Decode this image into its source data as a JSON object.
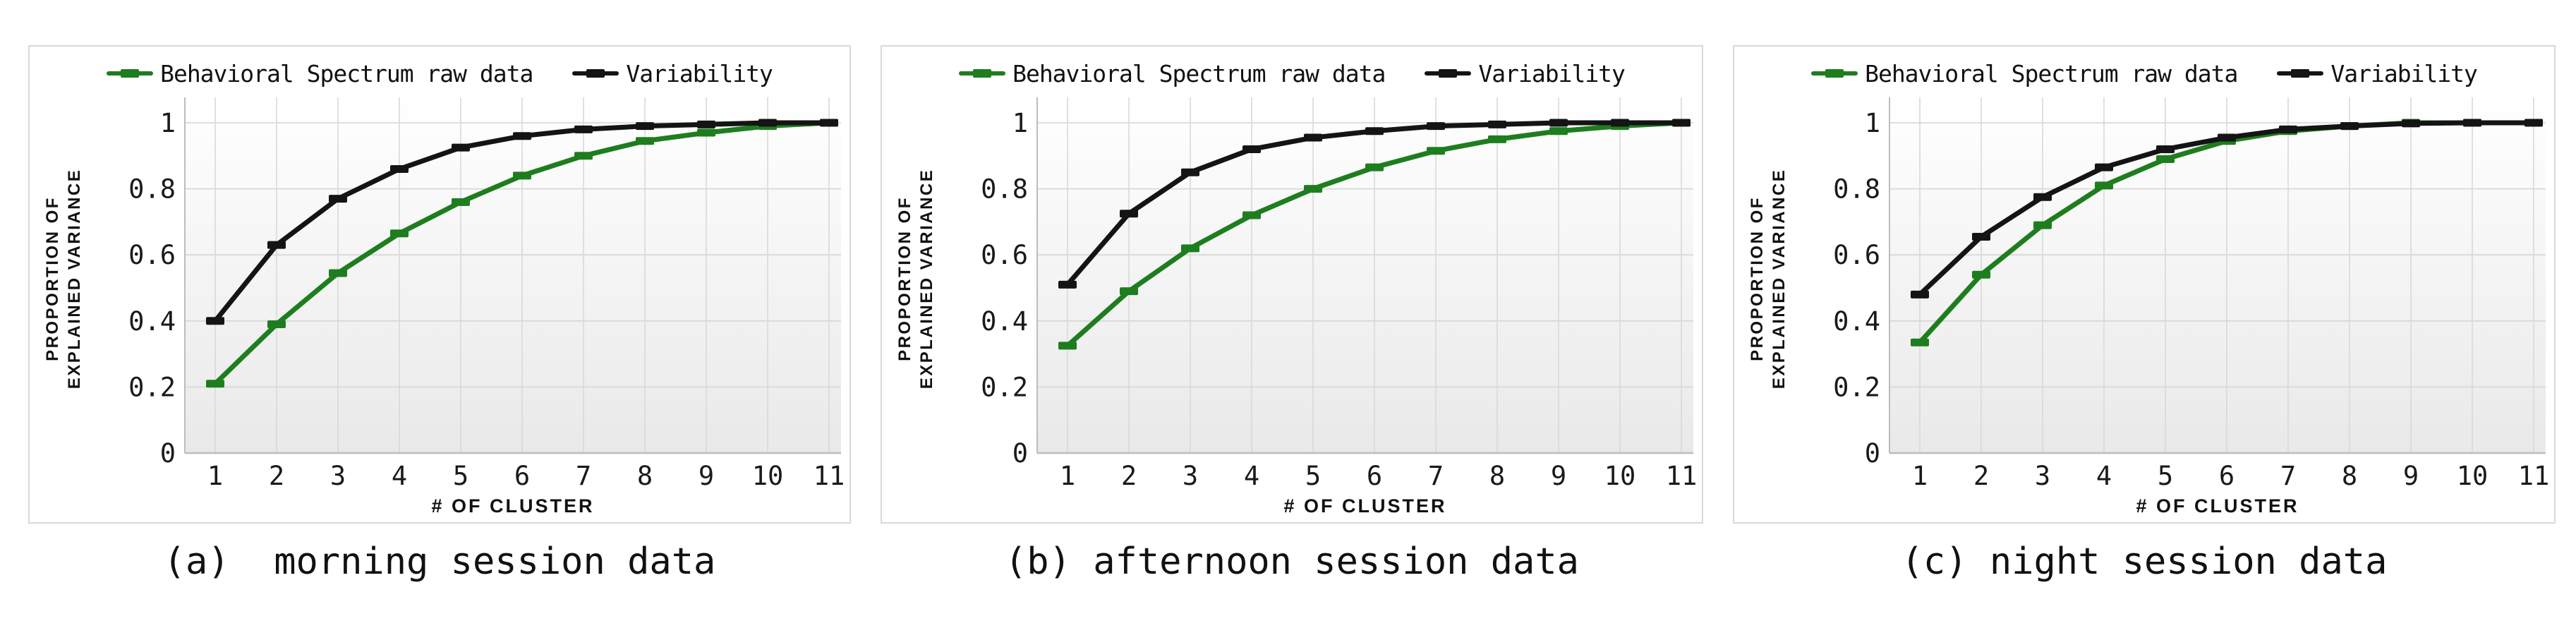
{
  "axis": {
    "x_title": "# OF CLUSTER",
    "y_line1": "PROPORTION OF",
    "y_line2": "EXPLAINED VARIANCE",
    "y_tick_labels": [
      "0",
      "0.2",
      "0.4",
      "0.6",
      "0.8",
      "1"
    ],
    "x_tick_labels": [
      "1",
      "2",
      "3",
      "4",
      "5",
      "6",
      "7",
      "8",
      "9",
      "10",
      "11"
    ]
  },
  "colors": {
    "behavioral": "#1e7d1e",
    "variability": "#141414",
    "grid": "#d9d9d9",
    "axis_line": "#bdbdbd",
    "plot_bg_top": "#ffffff",
    "plot_bg_bottom": "#e9e9e9"
  },
  "chart_data": [
    {
      "type": "line",
      "caption": "(a)  morning session data",
      "xlabel": "# OF CLUSTER",
      "ylabel": "PROPORTION OF EXPLAINED VARIANCE",
      "x": [
        1,
        2,
        3,
        4,
        5,
        6,
        7,
        8,
        9,
        10,
        11
      ],
      "y_ticks": [
        0,
        0.2,
        0.4,
        0.6,
        0.8,
        1
      ],
      "ylim": [
        0,
        1.08
      ],
      "grid": true,
      "legend_position": "top",
      "series": [
        {
          "name": "Behavioral Spectrum raw data",
          "color": "#1e7d1e",
          "values": [
            0.21,
            0.39,
            0.545,
            0.665,
            0.76,
            0.84,
            0.9,
            0.945,
            0.97,
            0.99,
            1.0
          ]
        },
        {
          "name": "Variability",
          "color": "#141414",
          "values": [
            0.4,
            0.63,
            0.77,
            0.86,
            0.925,
            0.96,
            0.98,
            0.99,
            0.995,
            1.0,
            1.0
          ]
        }
      ]
    },
    {
      "type": "line",
      "caption": "(b) afternoon session data",
      "xlabel": "# OF CLUSTER",
      "ylabel": "PROPORTION OF EXPLAINED VARIANCE",
      "x": [
        1,
        2,
        3,
        4,
        5,
        6,
        7,
        8,
        9,
        10,
        11
      ],
      "y_ticks": [
        0,
        0.2,
        0.4,
        0.6,
        0.8,
        1
      ],
      "ylim": [
        0,
        1.08
      ],
      "grid": true,
      "legend_position": "top",
      "series": [
        {
          "name": "Behavioral Spectrum raw data",
          "color": "#1e7d1e",
          "values": [
            0.325,
            0.49,
            0.62,
            0.72,
            0.8,
            0.865,
            0.915,
            0.95,
            0.975,
            0.99,
            1.0
          ]
        },
        {
          "name": "Variability",
          "color": "#141414",
          "values": [
            0.51,
            0.725,
            0.85,
            0.92,
            0.955,
            0.975,
            0.99,
            0.995,
            1.0,
            1.0,
            1.0
          ]
        }
      ]
    },
    {
      "type": "line",
      "caption": "(c) night session data",
      "xlabel": "# OF CLUSTER",
      "ylabel": "PROPORTION OF EXPLAINED VARIANCE",
      "x": [
        1,
        2,
        3,
        4,
        5,
        6,
        7,
        8,
        9,
        10,
        11
      ],
      "y_ticks": [
        0,
        0.2,
        0.4,
        0.6,
        0.8,
        1
      ],
      "ylim": [
        0,
        1.08
      ],
      "grid": true,
      "legend_position": "top",
      "series": [
        {
          "name": "Behavioral Spectrum raw data",
          "color": "#1e7d1e",
          "values": [
            0.335,
            0.54,
            0.69,
            0.81,
            0.89,
            0.945,
            0.975,
            0.99,
            1.0,
            1.0,
            1.0
          ]
        },
        {
          "name": "Variability",
          "color": "#141414",
          "values": [
            0.48,
            0.655,
            0.775,
            0.865,
            0.92,
            0.955,
            0.98,
            0.99,
            0.998,
            1.0,
            1.0
          ]
        }
      ]
    }
  ]
}
